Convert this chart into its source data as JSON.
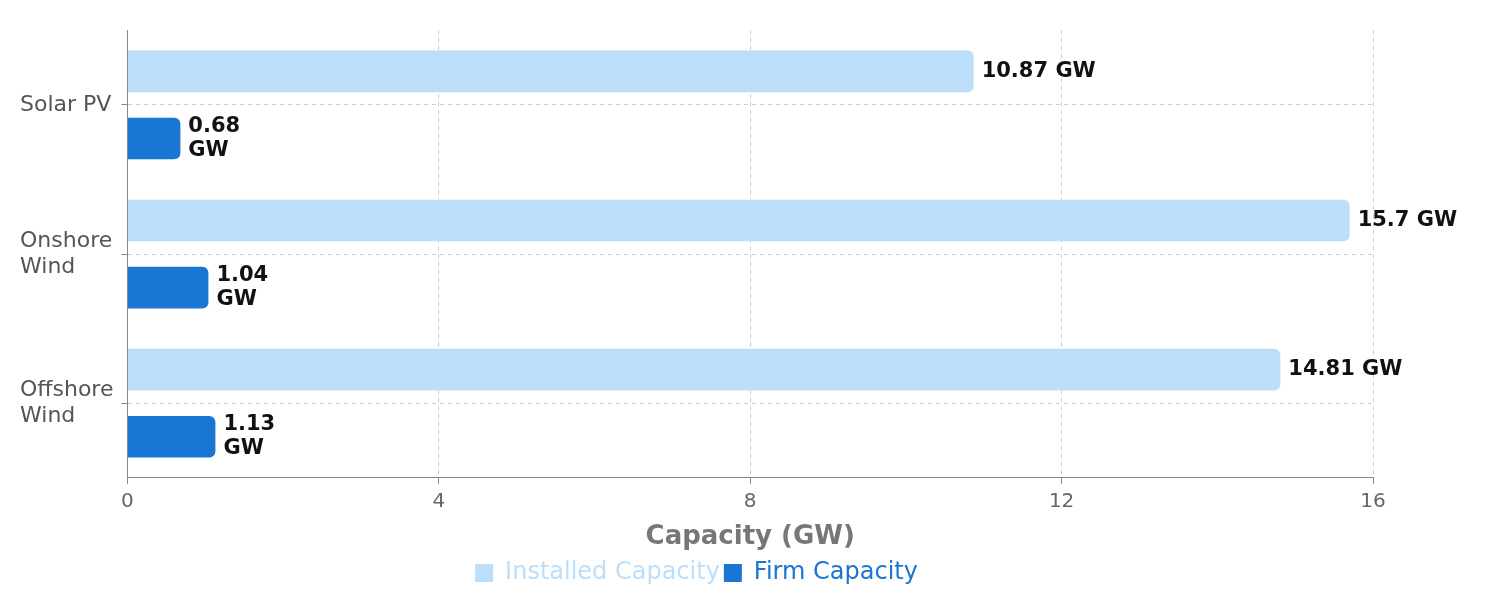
{
  "chart_data": {
    "type": "bar",
    "orientation": "horizontal",
    "xlabel": "Capacity (GW)",
    "categories": [
      "Solar PV",
      "Onshore Wind",
      "Offshore Wind"
    ],
    "series": [
      {
        "name": "Installed Capacity",
        "color": "#bbdefb",
        "values": [
          10.87,
          15.7,
          14.81
        ],
        "value_labels": [
          "10.87 GW",
          "15.7 GW",
          "14.81 GW"
        ]
      },
      {
        "name": "Firm Capacity",
        "color": "#1976d2",
        "values": [
          0.68,
          1.04,
          1.13
        ],
        "value_labels": [
          "0.68 GW",
          "1.04 GW",
          "1.13 GW"
        ]
      }
    ],
    "xlim": [
      0,
      16
    ],
    "xticks": [
      0,
      4,
      8,
      12,
      16
    ],
    "grid": true,
    "legend": "bottom"
  }
}
